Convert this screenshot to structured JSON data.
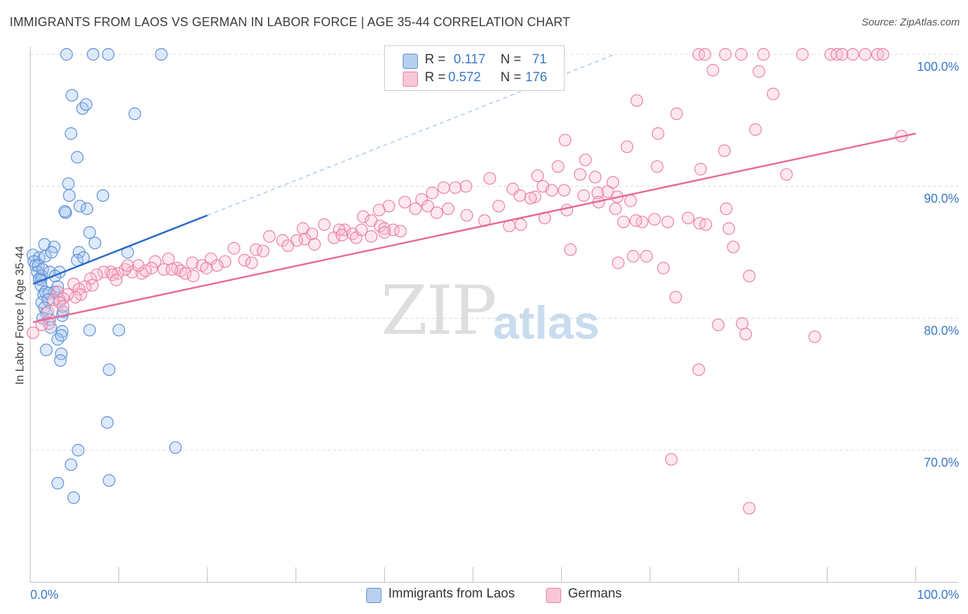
{
  "header": {
    "title": "IMMIGRANTS FROM LAOS VS GERMAN IN LABOR FORCE | AGE 35-44 CORRELATION CHART",
    "source": "Source: ZipAtlas.com"
  },
  "legend_box": {
    "rows": [
      {
        "r_label": "R =",
        "r_value": "0.117",
        "n_label": "N =",
        "n_value": "71"
      },
      {
        "r_label": "R =",
        "r_value": "0.572",
        "n_label": "N =",
        "n_value": "176"
      }
    ]
  },
  "watermark": {
    "zip": "ZIP",
    "atlas": "atlas"
  },
  "chart_data": {
    "type": "scatter",
    "title": "IMMIGRANTS FROM LAOS VS GERMAN IN LABOR FORCE | AGE 35-44 CORRELATION CHART",
    "xlabel": "",
    "ylabel": "In Labor Force | Age 35-44",
    "xlim": [
      0,
      100
    ],
    "ylim": [
      60,
      102
    ],
    "x_tick_labels": [
      "0.0%",
      "100.0%"
    ],
    "y_ticks": [
      70,
      80,
      90,
      100
    ],
    "y_tick_labels": [
      "70.0%",
      "80.0%",
      "90.0%",
      "100.0%"
    ],
    "grid": true,
    "legend_position": "bottom",
    "colors": {
      "laos": "#5b8fd4",
      "germans": "#e97fa2",
      "laos_line": "#2a6ac8",
      "germans_line": "#e8699a",
      "tick_label": "#3a78c9"
    },
    "series": [
      {
        "name": "Immigrants from Laos",
        "r": 0.117,
        "n": 71,
        "trend_solid": [
          [
            0.3,
            82.6
          ],
          [
            20.0,
            87.8
          ]
        ],
        "trend_dashed": [
          [
            20.0,
            87.8
          ],
          [
            66.0,
            100.0
          ]
        ],
        "points": [
          [
            4.1,
            100
          ],
          [
            7.1,
            100
          ],
          [
            8.8,
            100
          ],
          [
            14.8,
            100
          ],
          [
            4.7,
            96.9
          ],
          [
            5.9,
            95.9
          ],
          [
            6.3,
            96.2
          ],
          [
            11.8,
            95.5
          ],
          [
            4.6,
            94.0
          ],
          [
            5.3,
            92.2
          ],
          [
            4.3,
            90.2
          ],
          [
            4.4,
            89.3
          ],
          [
            8.2,
            89.3
          ],
          [
            5.6,
            88.5
          ],
          [
            4.0,
            88.0
          ],
          [
            3.9,
            88.1
          ],
          [
            6.4,
            88.3
          ],
          [
            6.7,
            86.5
          ],
          [
            7.3,
            85.7
          ],
          [
            1.6,
            85.6
          ],
          [
            2.7,
            85.4
          ],
          [
            0.3,
            84.8
          ],
          [
            1.0,
            84.6
          ],
          [
            1.7,
            84.7
          ],
          [
            2.4,
            85.0
          ],
          [
            5.5,
            85.0
          ],
          [
            11.0,
            85.0
          ],
          [
            0.4,
            84.3
          ],
          [
            0.6,
            84.0
          ],
          [
            0.9,
            84.0
          ],
          [
            0.8,
            83.5
          ],
          [
            1.3,
            83.2
          ],
          [
            1.0,
            83.0
          ],
          [
            1.4,
            83.7
          ],
          [
            2.2,
            83.5
          ],
          [
            3.3,
            83.5
          ],
          [
            5.3,
            84.4
          ],
          [
            6.0,
            84.6
          ],
          [
            1.2,
            82.9
          ],
          [
            2.8,
            83.2
          ],
          [
            1.2,
            82.5
          ],
          [
            2.7,
            82.0
          ],
          [
            3.1,
            82.4
          ],
          [
            1.5,
            81.8
          ],
          [
            1.7,
            82.0
          ],
          [
            2.1,
            81.9
          ],
          [
            3.3,
            81.4
          ],
          [
            1.3,
            81.2
          ],
          [
            2.0,
            81.4
          ],
          [
            1.6,
            80.8
          ],
          [
            1.8,
            80.4
          ],
          [
            3.6,
            80.2
          ],
          [
            3.7,
            80.5
          ],
          [
            1.4,
            80.0
          ],
          [
            2.2,
            79.9
          ],
          [
            2.3,
            79.3
          ],
          [
            3.6,
            79.0
          ],
          [
            6.7,
            79.1
          ],
          [
            10.0,
            79.1
          ],
          [
            3.1,
            78.4
          ],
          [
            3.5,
            78.7
          ],
          [
            1.8,
            77.6
          ],
          [
            3.5,
            77.3
          ],
          [
            3.4,
            76.8
          ],
          [
            8.9,
            76.1
          ],
          [
            8.7,
            72.1
          ],
          [
            5.4,
            70.0
          ],
          [
            16.4,
            70.2
          ],
          [
            4.6,
            68.9
          ],
          [
            3.1,
            67.5
          ],
          [
            8.9,
            67.7
          ],
          [
            4.9,
            66.4
          ]
        ]
      },
      {
        "name": "Germans",
        "r": 0.572,
        "n": 176,
        "trend": [
          [
            0.3,
            79.7
          ],
          [
            100.0,
            94.0
          ]
        ],
        "points": [
          [
            75.5,
            100
          ],
          [
            76.2,
            100
          ],
          [
            78.5,
            100
          ],
          [
            80.3,
            100
          ],
          [
            82.8,
            100
          ],
          [
            87.2,
            100
          ],
          [
            90.4,
            100
          ],
          [
            91.1,
            100
          ],
          [
            91.7,
            100
          ],
          [
            92.9,
            100
          ],
          [
            94.3,
            100
          ],
          [
            95.7,
            100
          ],
          [
            96.3,
            100
          ],
          [
            77.1,
            98.8
          ],
          [
            82.3,
            98.7
          ],
          [
            83.9,
            97.0
          ],
          [
            68.5,
            96.5
          ],
          [
            73.0,
            95.5
          ],
          [
            81.9,
            94.3
          ],
          [
            98.4,
            93.8
          ],
          [
            70.9,
            94.0
          ],
          [
            60.4,
            93.5
          ],
          [
            67.4,
            93.0
          ],
          [
            78.4,
            92.7
          ],
          [
            62.7,
            92.0
          ],
          [
            70.8,
            91.5
          ],
          [
            59.6,
            91.5
          ],
          [
            75.7,
            91.3
          ],
          [
            85.4,
            90.9
          ],
          [
            57.3,
            90.8
          ],
          [
            62.1,
            90.9
          ],
          [
            63.8,
            90.7
          ],
          [
            65.8,
            90.3
          ],
          [
            57.9,
            90.0
          ],
          [
            51.9,
            90.6
          ],
          [
            49.2,
            90.0
          ],
          [
            46.7,
            89.9
          ],
          [
            48.0,
            89.9
          ],
          [
            45.4,
            89.5
          ],
          [
            54.5,
            89.8
          ],
          [
            55.3,
            89.3
          ],
          [
            57.0,
            89.2
          ],
          [
            58.9,
            89.7
          ],
          [
            60.3,
            89.7
          ],
          [
            62.5,
            89.3
          ],
          [
            64.1,
            89.5
          ],
          [
            65.2,
            89.6
          ],
          [
            66.3,
            89.2
          ],
          [
            67.8,
            88.9
          ],
          [
            52.9,
            88.5
          ],
          [
            56.5,
            89.1
          ],
          [
            44.2,
            89.0
          ],
          [
            44.9,
            88.5
          ],
          [
            47.2,
            88.3
          ],
          [
            45.9,
            88.0
          ],
          [
            42.3,
            88.8
          ],
          [
            40.5,
            88.5
          ],
          [
            43.5,
            88.3
          ],
          [
            39.4,
            88.2
          ],
          [
            49.3,
            87.8
          ],
          [
            51.3,
            87.4
          ],
          [
            54.1,
            87.0
          ],
          [
            58.1,
            87.6
          ],
          [
            60.6,
            88.2
          ],
          [
            64.2,
            88.8
          ],
          [
            66.1,
            88.3
          ],
          [
            74.3,
            87.6
          ],
          [
            69.1,
            87.3
          ],
          [
            72.0,
            87.3
          ],
          [
            75.6,
            87.2
          ],
          [
            76.3,
            87.1
          ],
          [
            78.6,
            88.3
          ],
          [
            78.9,
            86.8
          ],
          [
            55.4,
            87.1
          ],
          [
            37.6,
            87.7
          ],
          [
            38.5,
            87.4
          ],
          [
            39.5,
            87.0
          ],
          [
            35.5,
            86.7
          ],
          [
            34.9,
            86.7
          ],
          [
            31.8,
            86.4
          ],
          [
            30.8,
            86.8
          ],
          [
            31.0,
            86.0
          ],
          [
            33.2,
            87.1
          ],
          [
            34.3,
            86.1
          ],
          [
            35.2,
            86.3
          ],
          [
            36.4,
            86.4
          ],
          [
            36.8,
            86.1
          ],
          [
            37.4,
            86.7
          ],
          [
            40.0,
            86.8
          ],
          [
            41.0,
            86.7
          ],
          [
            41.8,
            86.6
          ],
          [
            40.0,
            86.5
          ],
          [
            38.5,
            86.2
          ],
          [
            27.0,
            86.2
          ],
          [
            28.5,
            85.9
          ],
          [
            29.1,
            85.5
          ],
          [
            30.1,
            85.9
          ],
          [
            32.1,
            85.6
          ],
          [
            23.0,
            85.3
          ],
          [
            25.5,
            85.2
          ],
          [
            26.3,
            85.1
          ],
          [
            24.2,
            84.4
          ],
          [
            22.0,
            84.3
          ],
          [
            20.4,
            84.5
          ],
          [
            21.1,
            84.0
          ],
          [
            18.3,
            84.2
          ],
          [
            19.4,
            84.0
          ],
          [
            25.0,
            84.2
          ],
          [
            15.6,
            84.5
          ],
          [
            14.1,
            84.3
          ],
          [
            16.6,
            83.8
          ],
          [
            17.0,
            83.6
          ],
          [
            15.1,
            83.7
          ],
          [
            13.7,
            83.8
          ],
          [
            12.6,
            83.4
          ],
          [
            11.5,
            83.5
          ],
          [
            10.7,
            83.7
          ],
          [
            9.9,
            83.4
          ],
          [
            9.1,
            83.5
          ],
          [
            8.3,
            83.5
          ],
          [
            7.5,
            83.3
          ],
          [
            13.0,
            83.6
          ],
          [
            12.2,
            84.0
          ],
          [
            11.0,
            84.0
          ],
          [
            17.5,
            83.4
          ],
          [
            18.4,
            83.2
          ],
          [
            19.9,
            83.8
          ],
          [
            16.0,
            83.7
          ],
          [
            6.8,
            83.0
          ],
          [
            7.0,
            82.5
          ],
          [
            9.3,
            83.3
          ],
          [
            9.7,
            82.9
          ],
          [
            6.2,
            82.4
          ],
          [
            4.9,
            82.6
          ],
          [
            5.5,
            82.2
          ],
          [
            5.7,
            81.8
          ],
          [
            5.1,
            81.6
          ],
          [
            4.2,
            81.8
          ],
          [
            3.1,
            82.0
          ],
          [
            3.7,
            81.5
          ],
          [
            2.6,
            81.4
          ],
          [
            3.3,
            81.2
          ],
          [
            2.0,
            80.5
          ],
          [
            2.1,
            79.6
          ],
          [
            1.3,
            79.5
          ],
          [
            0.3,
            78.9
          ],
          [
            3.7,
            80.9
          ],
          [
            66.4,
            84.2
          ],
          [
            68.1,
            84.7
          ],
          [
            69.6,
            84.7
          ],
          [
            71.5,
            83.8
          ],
          [
            72.9,
            81.6
          ],
          [
            79.4,
            85.4
          ],
          [
            81.2,
            83.2
          ],
          [
            67.0,
            87.3
          ],
          [
            68.4,
            87.4
          ],
          [
            70.5,
            87.5
          ],
          [
            61.0,
            85.2
          ],
          [
            77.7,
            79.5
          ],
          [
            80.4,
            79.6
          ],
          [
            80.8,
            78.8
          ],
          [
            88.6,
            78.6
          ],
          [
            75.5,
            76.1
          ],
          [
            72.4,
            69.3
          ],
          [
            81.2,
            65.6
          ]
        ]
      }
    ]
  },
  "bottom_legend": {
    "items": [
      {
        "label": "Immigrants from Laos"
      },
      {
        "label": "Germans"
      }
    ]
  }
}
